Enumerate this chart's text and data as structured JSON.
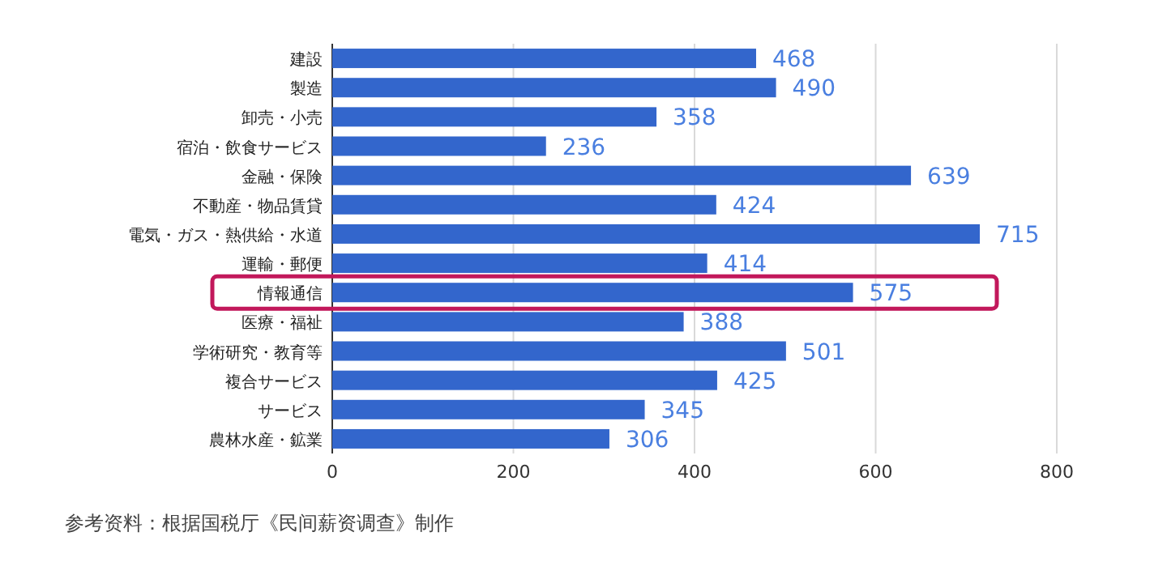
{
  "chart_data": {
    "type": "bar",
    "orientation": "horizontal",
    "categories": [
      "建設",
      "製造",
      "卸売・小売",
      "宿泊・飲食サービス",
      "金融・保険",
      "不動産・物品賃貸",
      "電気・ガス・熱供給・水道",
      "運輸・郵便",
      "情報通信",
      "医療・福祉",
      "学術研究・教育等",
      "複合サービス",
      "サービス",
      "農林水産・鉱業"
    ],
    "values": [
      468,
      490,
      358,
      236,
      639,
      424,
      715,
      414,
      575,
      388,
      501,
      425,
      345,
      306
    ],
    "color": "#3366cc",
    "data_labels": true,
    "xlim": [
      0,
      800
    ],
    "xticks": [
      0,
      200,
      400,
      600,
      800
    ],
    "grid": "x",
    "annotations": [
      "参考资料：根据国税厅《民间薪资调查》制作"
    ]
  }
}
